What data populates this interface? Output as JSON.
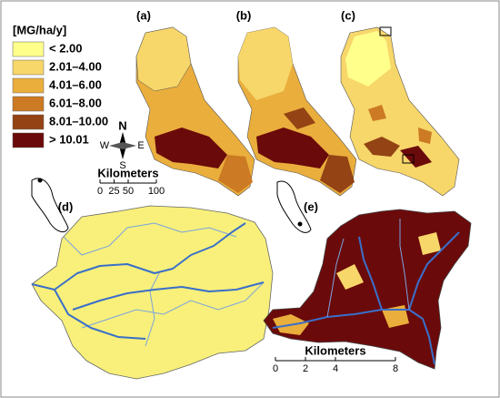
{
  "legend": {
    "title": "[MG/ha/y]",
    "classes": [
      {
        "label": "< 2.00",
        "color": "#ffff8c"
      },
      {
        "label": "2.01–4.00",
        "color": "#f7d66a"
      },
      {
        "label": "4.01–6.00",
        "color": "#eaae3c"
      },
      {
        "label": "6.01–8.00",
        "color": "#cc7a24"
      },
      {
        "label": "8.01–10.00",
        "color": "#934314"
      },
      {
        "label": "> 10.01",
        "color": "#6b0a0a"
      }
    ]
  },
  "panels": [
    {
      "label": "(a)"
    },
    {
      "label": "(b)"
    },
    {
      "label": "(c)"
    },
    {
      "label": "(d)"
    },
    {
      "label": "(e)"
    }
  ],
  "compass": {
    "n": "N",
    "e": "E",
    "s": "S",
    "w": "W"
  },
  "scale_bars": [
    {
      "title": "Kilometers",
      "ticks": [
        0,
        25,
        50,
        100
      ]
    },
    {
      "title": "Kilometers",
      "ticks": [
        0,
        2,
        4,
        8
      ]
    }
  ]
}
